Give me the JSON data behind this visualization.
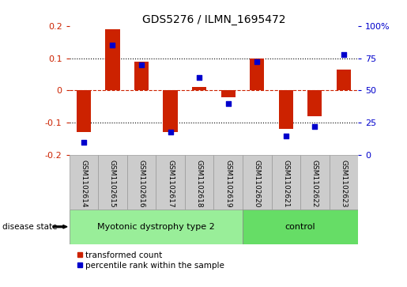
{
  "title": "GDS5276 / ILMN_1695472",
  "samples": [
    "GSM1102614",
    "GSM1102615",
    "GSM1102616",
    "GSM1102617",
    "GSM1102618",
    "GSM1102619",
    "GSM1102620",
    "GSM1102621",
    "GSM1102622",
    "GSM1102623"
  ],
  "transformed_count": [
    -0.13,
    0.19,
    0.09,
    -0.13,
    0.01,
    -0.02,
    0.1,
    -0.12,
    -0.08,
    0.065
  ],
  "percentile_rank": [
    10,
    85,
    70,
    18,
    60,
    40,
    72,
    15,
    22,
    78
  ],
  "bar_color": "#cc2200",
  "dot_color": "#0000cc",
  "left_ylim": [
    -0.2,
    0.2
  ],
  "right_ylim": [
    0,
    100
  ],
  "left_yticks": [
    -0.2,
    -0.1,
    0.0,
    0.1,
    0.2
  ],
  "left_yticklabels": [
    "-0.2",
    "-0.1",
    "0",
    "0.1",
    "0.2"
  ],
  "right_yticks": [
    0,
    25,
    50,
    75,
    100
  ],
  "right_yticklabels": [
    "0",
    "25",
    "50",
    "75",
    "100%"
  ],
  "dotted_lines": [
    -0.1,
    0.1
  ],
  "zero_line": 0.0,
  "group1_label": "Myotonic dystrophy type 2",
  "group2_label": "control",
  "group1_indices": [
    0,
    1,
    2,
    3,
    4,
    5
  ],
  "group2_indices": [
    6,
    7,
    8,
    9
  ],
  "group1_color": "#99ee99",
  "group2_color": "#66dd66",
  "disease_state_label": "disease state",
  "legend_bar_label": "transformed count",
  "legend_dot_label": "percentile rank within the sample",
  "tick_color_left": "#cc2200",
  "tick_color_right": "#0000cc",
  "background_color": "#ffffff",
  "header_box_color": "#cccccc"
}
